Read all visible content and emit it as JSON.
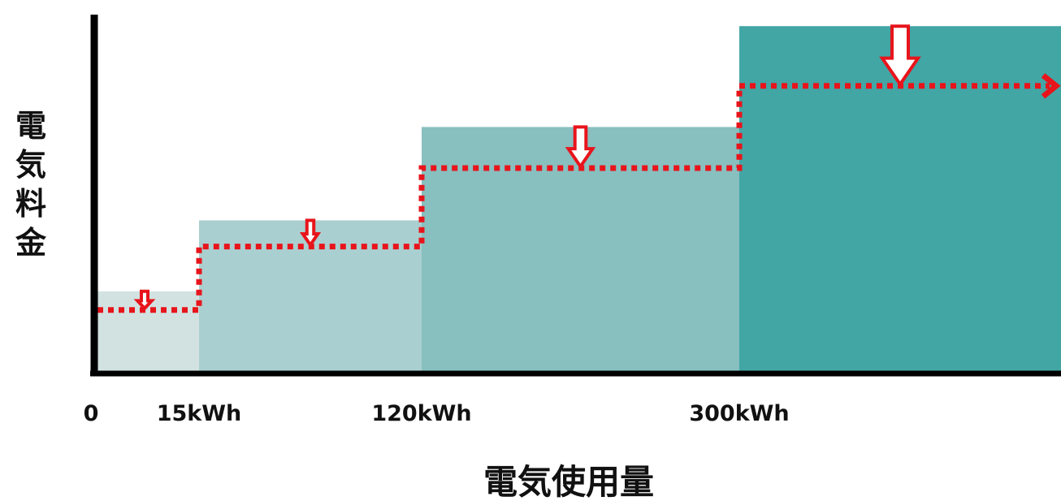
{
  "chart_data": {
    "type": "bar",
    "xlabel": "電気使用量",
    "ylabel": "電気料金",
    "x_ticks": [
      "0",
      "15kWh",
      "120kWh",
      "300kWh"
    ],
    "tiers": [
      {
        "from": 0,
        "to": 15,
        "value": 22,
        "reduced": 17,
        "color": "#d1e2e1"
      },
      {
        "from": 15,
        "to": 120,
        "value": 41,
        "reduced": 34,
        "color": "#aacfd0"
      },
      {
        "from": 120,
        "to": 300,
        "value": 66,
        "reduced": 55,
        "color": "#88bfbf"
      },
      {
        "from": 300,
        "to": null,
        "value": 93,
        "reduced": 77,
        "color": "#42a6a5"
      }
    ],
    "line_style": "red dotted step line with arrowhead",
    "arrow_marker": "hollow down arrow on each tier",
    "colors": {
      "reduced_line": "#e8141b",
      "axis": "#000000"
    }
  }
}
